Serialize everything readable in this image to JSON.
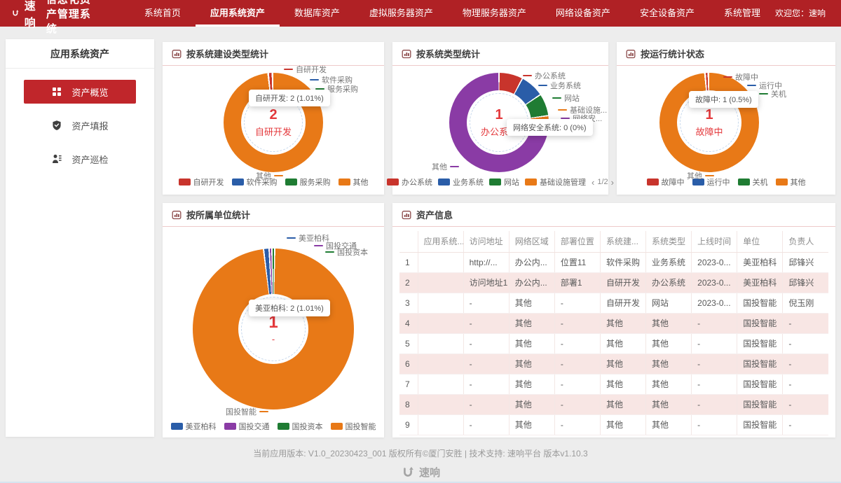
{
  "palette": {
    "red": "#C8342C",
    "blue": "#2A5DA8",
    "green": "#1F7C33",
    "orange": "#E87917",
    "purple": "#8A3BA5",
    "header_red": "#B02125",
    "active_red": "#C0262B",
    "center_text_red": "#E4393C",
    "stripe_pink": "#F8E6E4"
  },
  "header": {
    "logo_text": "速响",
    "title": "信息化资产管理系统",
    "nav": [
      "系统首页",
      "应用系统资产",
      "数据库资产",
      "虚拟服务器资产",
      "物理服务器资产",
      "网络设备资产",
      "安全设备资产",
      "系统管理"
    ],
    "active_nav": "应用系统资产",
    "welcome_label": "欢迎您：",
    "username": "速响"
  },
  "sidebar": {
    "title": "应用系统资产",
    "items": [
      {
        "label": "资产概览",
        "active": true
      },
      {
        "label": "资产填报",
        "active": false
      },
      {
        "label": "资产巡检",
        "active": false
      }
    ]
  },
  "chart_data": [
    {
      "type": "pie",
      "title": "按系统建设类型统计",
      "center_value": "2",
      "center_label": "自研开发",
      "tooltip": "自研开发: 2 (1.01%)",
      "start_deg": -6,
      "gap_deg": 2,
      "slices": [
        {
          "name": "自研开发",
          "value": 2,
          "pct": "1.01%",
          "color": "#C8342C",
          "deg": 5
        },
        {
          "name": "其他",
          "color": "#E87917",
          "deg": 355
        }
      ],
      "callouts": [
        {
          "label": "自研开发",
          "color": "#C8342C"
        },
        {
          "label": "软件采购",
          "color": "#2A5DA8"
        },
        {
          "label": "服务采购",
          "color": "#1F7C33"
        },
        {
          "label": "其他",
          "color": "#E87917"
        }
      ],
      "legend": [
        {
          "label": "自研开发",
          "color": "#C8342C"
        },
        {
          "label": "软件采购",
          "color": "#2A5DA8"
        },
        {
          "label": "服务采购",
          "color": "#1F7C33"
        },
        {
          "label": "其他",
          "color": "#E87917"
        }
      ]
    },
    {
      "type": "pie",
      "title": "按系统类型统计",
      "center_value": "1",
      "center_label": "办公系统",
      "tooltip": "网络安全系统: 0 (0%)",
      "start_deg": 0,
      "gap_deg": 1.5,
      "slices": [
        {
          "name": "办公系统",
          "color": "#C8342C",
          "deg": 28
        },
        {
          "name": "业务系统",
          "color": "#2A5DA8",
          "deg": 28
        },
        {
          "name": "网站",
          "color": "#1F7C33",
          "deg": 26
        },
        {
          "name": "基础设施管理",
          "color": "#E87917",
          "deg": 6
        },
        {
          "name": "网络安全系统",
          "value": 0,
          "pct": "0%",
          "color": "#8A3BA5",
          "deg": 3
        },
        {
          "name": "其他",
          "color": "#8A3BA5",
          "deg": 269
        }
      ],
      "callouts": [
        {
          "label": "办公系统",
          "color": "#C8342C"
        },
        {
          "label": "业务系统",
          "color": "#2A5DA8"
        },
        {
          "label": "网站",
          "color": "#1F7C33"
        },
        {
          "label": "基础设施...",
          "color": "#E87917"
        },
        {
          "label": "网络安...",
          "color": "#8A3BA5"
        },
        {
          "label": "其他",
          "color": "#8A3BA5"
        }
      ],
      "legend": [
        {
          "label": "办公系统",
          "color": "#C8342C"
        },
        {
          "label": "业务系统",
          "color": "#2A5DA8"
        },
        {
          "label": "网站",
          "color": "#1F7C33"
        },
        {
          "label": "基础设施管理",
          "color": "#E87917"
        }
      ],
      "pager": {
        "prev": "‹",
        "label": "1/2",
        "next": "›"
      }
    },
    {
      "type": "pie",
      "title": "按运行统计状态",
      "center_value": "1",
      "center_label": "故障中",
      "tooltip": "故障中: 1 (0.5%)",
      "start_deg": -5,
      "gap_deg": 2,
      "slices": [
        {
          "name": "故障中",
          "value": 1,
          "pct": "0.5%",
          "color": "#C8342C",
          "deg": 4
        },
        {
          "name": "其他",
          "color": "#E87917",
          "deg": 356
        }
      ],
      "callouts": [
        {
          "label": "故障中",
          "color": "#C8342C"
        },
        {
          "label": "运行中",
          "color": "#2A5DA8"
        },
        {
          "label": "关机",
          "color": "#1F7C33"
        },
        {
          "label": "其他",
          "color": "#E87917"
        }
      ],
      "legend": [
        {
          "label": "故障中",
          "color": "#C8342C"
        },
        {
          "label": "运行中",
          "color": "#2A5DA8"
        },
        {
          "label": "关机",
          "color": "#1F7C33"
        },
        {
          "label": "其他",
          "color": "#E87917"
        }
      ]
    },
    {
      "type": "pie",
      "title": "按所属单位统计",
      "center_value": "1",
      "center_label": "-",
      "tooltip": "美亚柏科: 2 (1.01%)",
      "start_deg": -7,
      "gap_deg": 1,
      "slices": [
        {
          "name": "美亚柏科",
          "value": 2,
          "pct": "1.01%",
          "color": "#2A5DA8",
          "deg": 4
        },
        {
          "name": "国投交通",
          "color": "#8A3BA5",
          "deg": 2
        },
        {
          "name": "国投资本",
          "color": "#1F7C33",
          "deg": 2
        },
        {
          "name": "国投智能",
          "color": "#E87917",
          "deg": 352
        }
      ],
      "callouts": [
        {
          "label": "美亚柏科",
          "color": "#2A5DA8"
        },
        {
          "label": "国投交通",
          "color": "#8A3BA5"
        },
        {
          "label": "国投资本",
          "color": "#1F7C33"
        },
        {
          "label": "国投智能",
          "color": "#E87917"
        }
      ],
      "legend": [
        {
          "label": "美亚柏科",
          "color": "#2A5DA8"
        },
        {
          "label": "国投交通",
          "color": "#8A3BA5"
        },
        {
          "label": "国投资本",
          "color": "#1F7C33"
        },
        {
          "label": "国投智能",
          "color": "#E87917"
        }
      ]
    }
  ],
  "table": {
    "title": "资产信息",
    "columns": [
      "",
      "应用系统...",
      "访问地址",
      "网络区域",
      "部署位置",
      "系统建...",
      "系统类型",
      "上线时间",
      "单位",
      "负责人"
    ],
    "rows": [
      [
        "1",
        "",
        "http://...",
        "办公内...",
        "位置11",
        "软件采购",
        "业务系统",
        "2023-0...",
        "美亚柏科",
        "邱锋兴"
      ],
      [
        "2",
        "",
        "访问地址1",
        "办公内...",
        "部署1",
        "自研开发",
        "办公系统",
        "2023-0...",
        "美亚柏科",
        "邱锋兴"
      ],
      [
        "3",
        "",
        "-",
        "其他",
        "-",
        "自研开发",
        "网站",
        "2023-0...",
        "国投智能",
        "倪玉刚"
      ],
      [
        "4",
        "",
        "-",
        "其他",
        "-",
        "其他",
        "其他",
        "-",
        "国投智能",
        "-"
      ],
      [
        "5",
        "",
        "-",
        "其他",
        "-",
        "其他",
        "其他",
        "-",
        "国投智能",
        "-"
      ],
      [
        "6",
        "",
        "-",
        "其他",
        "-",
        "其他",
        "其他",
        "-",
        "国投智能",
        "-"
      ],
      [
        "7",
        "",
        "-",
        "其他",
        "-",
        "其他",
        "其他",
        "-",
        "国投智能",
        "-"
      ],
      [
        "8",
        "",
        "-",
        "其他",
        "-",
        "其他",
        "其他",
        "-",
        "国投智能",
        "-"
      ],
      [
        "9",
        "",
        "-",
        "其他",
        "-",
        "其他",
        "其他",
        "-",
        "国投智能",
        "-"
      ]
    ]
  },
  "footer": {
    "version_line": "当前应用版本: V1.0_20230423_001 版权所有©厦门安胜 | 技术支持: 速响平台 版本v1.10.3",
    "logo_text": "速响"
  }
}
